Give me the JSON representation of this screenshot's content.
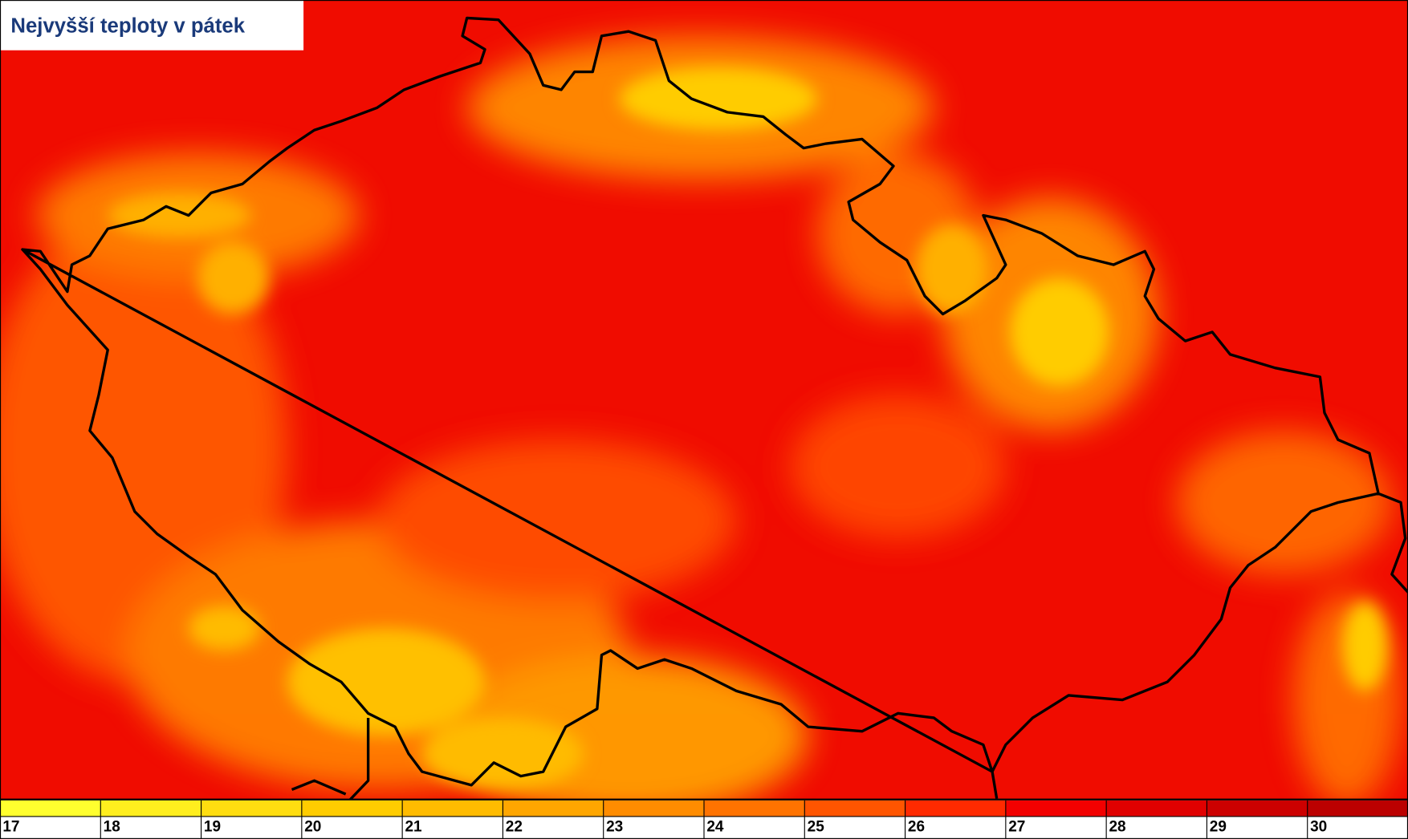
{
  "header": {
    "title": "Nejvyšší teploty v pátek"
  },
  "legend": {
    "ticks": [
      17,
      18,
      19,
      20,
      21,
      22,
      23,
      24,
      25,
      26,
      27,
      28,
      29,
      30
    ],
    "colors": [
      "#ffff2e",
      "#ffee1e",
      "#ffdd10",
      "#ffcc00",
      "#ffbb00",
      "#ffa600",
      "#ff8c00",
      "#ff7300",
      "#ff5500",
      "#ff2a00",
      "#f20000",
      "#e00000",
      "#cc0000",
      "#bb0000"
    ]
  }
}
